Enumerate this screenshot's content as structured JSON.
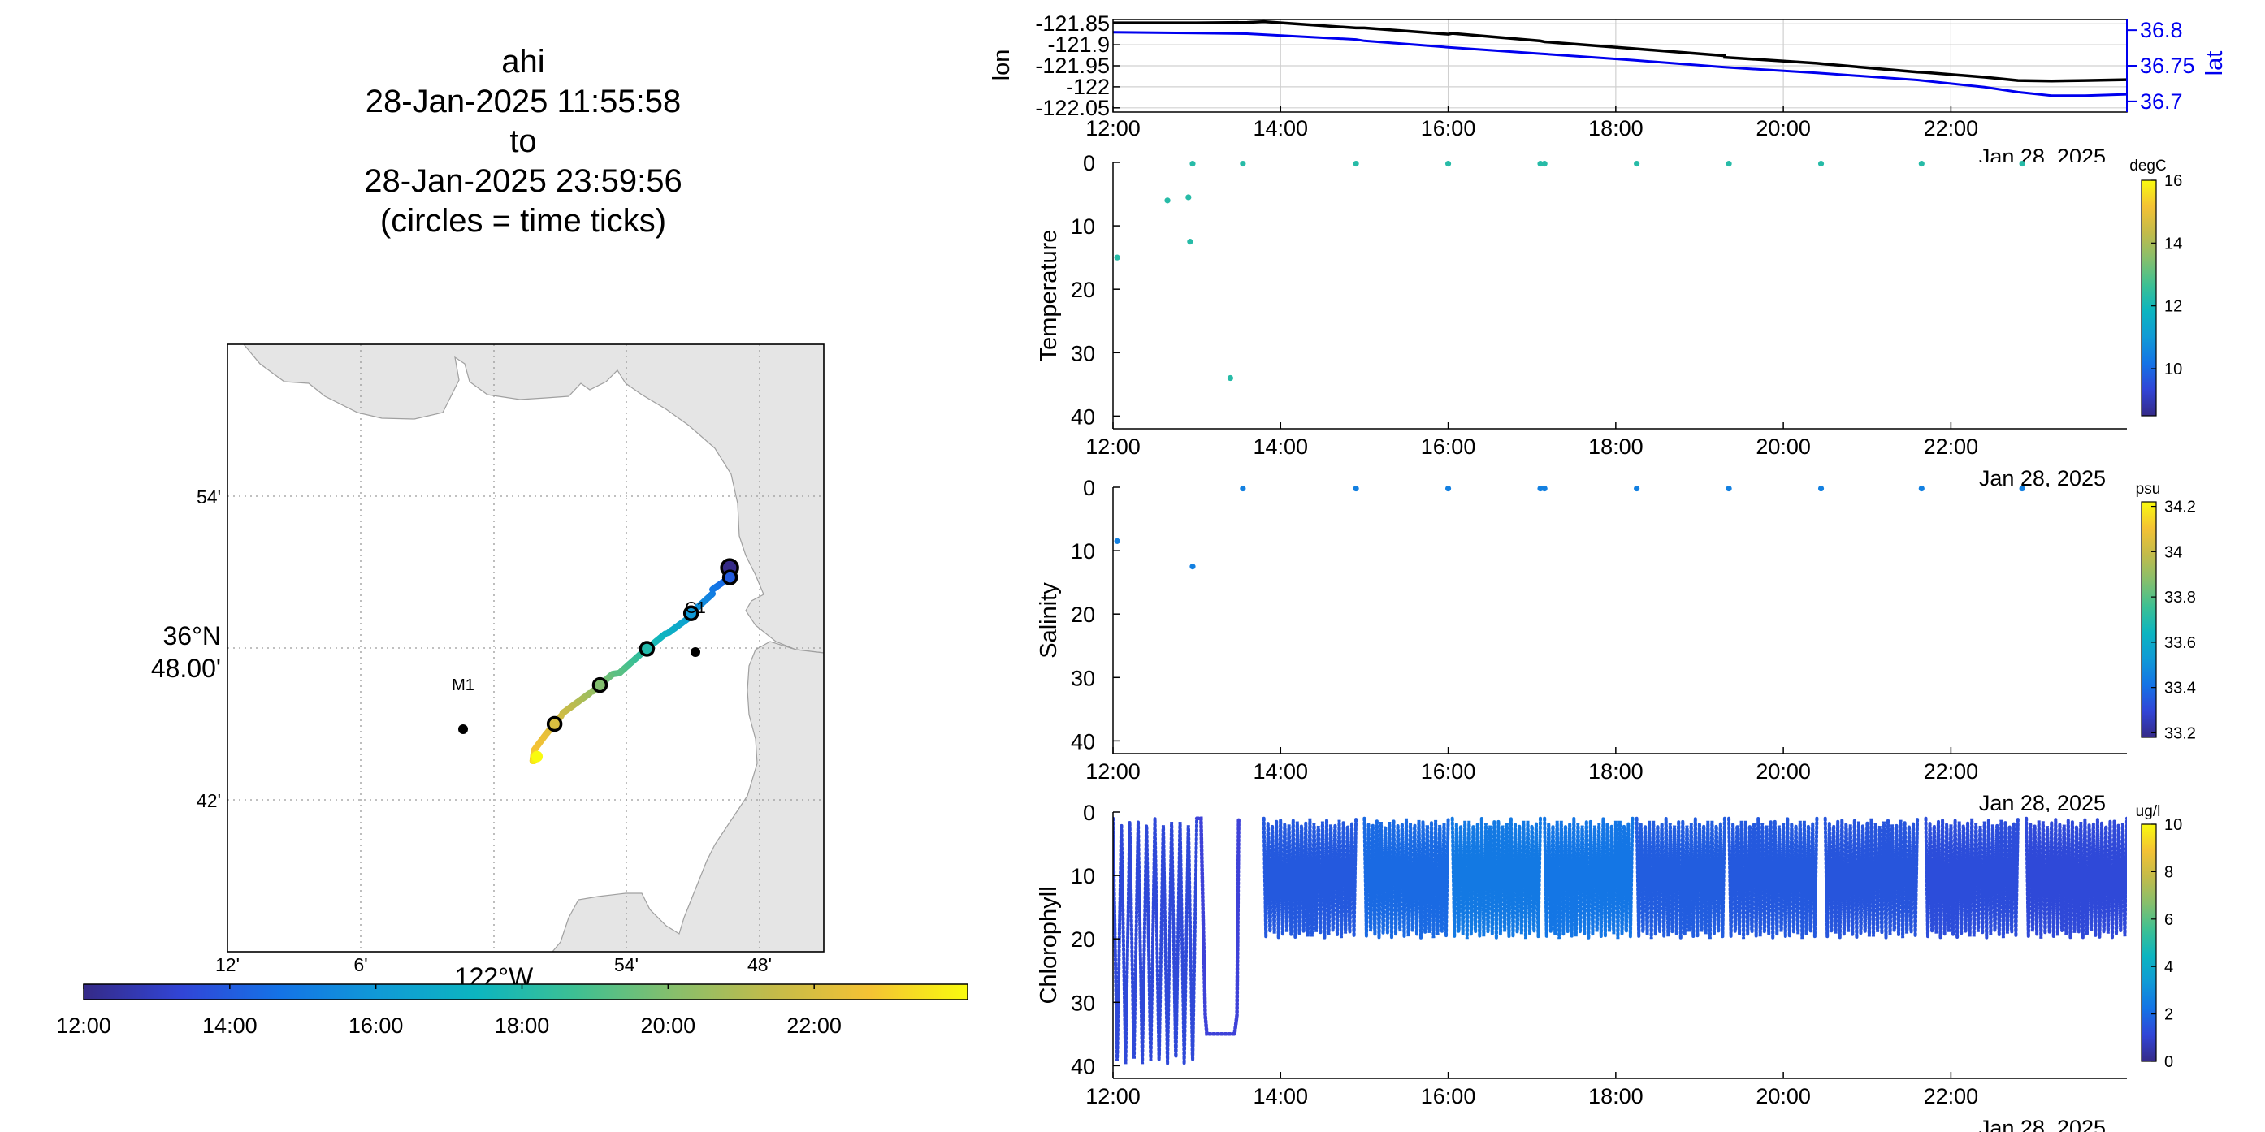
{
  "title": {
    "lines": [
      "ahi",
      "28-Jan-2025 11:55:58",
      "to",
      "28-Jan-2025 23:59:56",
      "(circles = time ticks)"
    ]
  },
  "colors": {
    "land": "#e5e5e5",
    "lon_line": "#000000",
    "lat_line": "#0000ee",
    "lat_axis": "#0000ee",
    "temperature_dot": "#2fb3c8",
    "salinity_dot": "#3a7be0",
    "chlorophyll_dot": "#3e42d8",
    "parula_colormap": [
      "#352a87",
      "#3145d7",
      "#1473e6",
      "#109ad6",
      "#0cb5c0",
      "#3dc093",
      "#86bf6c",
      "#c3bb4a",
      "#f4c234",
      "#f9fb0e"
    ]
  },
  "map": {
    "lat_labels": [
      "54'",
      "36°N",
      "48.00'",
      "42'"
    ],
    "lon_labels": [
      "12'",
      "6'",
      "122°W",
      "54'",
      "48'"
    ],
    "stations": [
      {
        "name": "M1",
        "lon": -122.03,
        "lat": 36.747
      },
      {
        "name": "C1",
        "lon": -121.848,
        "lat": 36.797
      }
    ],
    "colorbar_ticks": [
      "12:00",
      "14:00",
      "16:00",
      "18:00",
      "20:00",
      "22:00"
    ]
  },
  "chart_data": [
    {
      "type": "line",
      "title": "",
      "xlabel": "",
      "ylabel": "lon",
      "ylabel_right": "lat",
      "x_ticks": [
        "12:00",
        "14:00",
        "16:00",
        "18:00",
        "20:00",
        "22:00"
      ],
      "xlim_hours": [
        12,
        24.1
      ],
      "y_ticks_left": [
        "-121.85",
        "-121.9",
        "-121.95",
        "-122",
        "-122.05"
      ],
      "ylim_left": [
        -122.06,
        -121.84
      ],
      "y_ticks_right": [
        "36.8",
        "36.75",
        "36.7"
      ],
      "ylim_right": [
        36.685,
        36.815
      ],
      "series": [
        {
          "name": "lon",
          "axis": "left",
          "x": [
            12.0,
            13.0,
            13.6,
            13.8,
            14.9,
            15.0,
            16.0,
            16.05,
            17.1,
            17.15,
            18.2,
            19.3,
            19.3,
            20.4,
            20.5,
            21.6,
            21.7,
            22.4,
            22.8,
            23.2,
            23.6,
            24.1
          ],
          "values": [
            -121.848,
            -121.848,
            -121.847,
            -121.845,
            -121.86,
            -121.86,
            -121.875,
            -121.873,
            -121.891,
            -121.893,
            -121.909,
            -121.926,
            -121.93,
            -121.944,
            -121.946,
            -121.965,
            -121.966,
            -121.977,
            -121.985,
            -121.986,
            -121.985,
            -121.983
          ]
        },
        {
          "name": "lat",
          "axis": "right",
          "x": [
            12.0,
            13.0,
            13.6,
            14.9,
            15.0,
            16.0,
            17.1,
            18.2,
            19.3,
            20.4,
            21.6,
            22.4,
            22.8,
            23.2,
            23.6,
            24.1
          ],
          "values": [
            36.797,
            36.796,
            36.795,
            36.787,
            36.785,
            36.776,
            36.767,
            36.758,
            36.748,
            36.74,
            36.73,
            36.72,
            36.713,
            36.708,
            36.708,
            36.71
          ]
        }
      ],
      "date_label": "Jan 28, 2025"
    },
    {
      "type": "scatter",
      "title": "",
      "xlabel": "",
      "ylabel": "Temperature",
      "x_ticks": [
        "12:00",
        "14:00",
        "16:00",
        "18:00",
        "20:00",
        "22:00"
      ],
      "xlim_hours": [
        12,
        24.1
      ],
      "y_ticks": [
        "0",
        "10",
        "20",
        "30",
        "40"
      ],
      "ylim": [
        0,
        42
      ],
      "colorbar": {
        "unit": "degC",
        "ticks": [
          "16",
          "14",
          "12",
          "10"
        ],
        "range": [
          8.5,
          16
        ]
      },
      "points": {
        "x": [
          12.05,
          12.65,
          12.9,
          12.92,
          12.95,
          13.4,
          13.55,
          14.9,
          16.0,
          17.1,
          17.15,
          18.25,
          19.35,
          20.45,
          21.65,
          22.85
        ],
        "depth": [
          15,
          6,
          5.5,
          12.5,
          0.2,
          34,
          0.2,
          0.2,
          0.2,
          0.2,
          0.2,
          0.2,
          0.2,
          0.2,
          0.2,
          0.2
        ],
        "value": [
          12.3,
          12.3,
          12.3,
          12.3,
          12.3,
          12.3,
          12.3,
          12.3,
          12.3,
          12.3,
          12.3,
          12.3,
          12.3,
          12.3,
          12.3,
          12.3
        ]
      },
      "date_label": "Jan 28, 2025"
    },
    {
      "type": "scatter",
      "title": "",
      "xlabel": "",
      "ylabel": "Salinity",
      "x_ticks": [
        "12:00",
        "14:00",
        "16:00",
        "18:00",
        "20:00",
        "22:00"
      ],
      "xlim_hours": [
        12,
        24.1
      ],
      "y_ticks": [
        "0",
        "10",
        "20",
        "30",
        "40"
      ],
      "ylim": [
        0,
        42
      ],
      "colorbar": {
        "unit": "psu",
        "ticks": [
          "34.2",
          "34",
          "33.8",
          "33.6",
          "33.4",
          "33.2"
        ],
        "range": [
          33.18,
          34.22
        ]
      },
      "points": {
        "x": [
          12.05,
          12.95,
          13.55,
          14.9,
          16.0,
          17.1,
          17.15,
          18.25,
          19.35,
          20.45,
          21.65,
          22.85
        ],
        "depth": [
          8.5,
          12.5,
          0.2,
          0.2,
          0.2,
          0.2,
          0.2,
          0.2,
          0.2,
          0.2,
          0.2,
          0.2
        ],
        "value": [
          33.45,
          33.45,
          33.45,
          33.45,
          33.45,
          33.45,
          33.45,
          33.45,
          33.45,
          33.45,
          33.45,
          33.45
        ]
      },
      "date_label": "Jan 28, 2025"
    },
    {
      "type": "scatter",
      "title": "",
      "xlabel": "",
      "ylabel": "Chlorophyll",
      "x_ticks": [
        "12:00",
        "14:00",
        "16:00",
        "18:00",
        "20:00",
        "22:00"
      ],
      "xlim_hours": [
        12,
        24.1
      ],
      "y_ticks": [
        "0",
        "10",
        "20",
        "30",
        "40"
      ],
      "ylim": [
        0,
        42
      ],
      "colorbar": {
        "unit": "ug/l",
        "ticks": [
          "10",
          "8",
          "6",
          "4",
          "2",
          "0"
        ],
        "range": [
          0,
          10
        ]
      },
      "yo_segments": [
        {
          "start": 12.0,
          "end": 13.0,
          "top": 1,
          "bottom": 40,
          "period": 0.1,
          "level": 1.2
        },
        {
          "start": 13.8,
          "end": 14.9,
          "top": 1,
          "bottom": 20,
          "period": 0.05,
          "level": 1.6
        },
        {
          "start": 15.0,
          "end": 16.0,
          "top": 1,
          "bottom": 20,
          "period": 0.05,
          "level": 2.0
        },
        {
          "start": 16.05,
          "end": 17.1,
          "top": 1,
          "bottom": 20,
          "period": 0.05,
          "level": 2.4
        },
        {
          "start": 17.15,
          "end": 18.2,
          "top": 1,
          "bottom": 20,
          "period": 0.05,
          "level": 2.3
        },
        {
          "start": 18.25,
          "end": 19.3,
          "top": 1,
          "bottom": 20,
          "period": 0.05,
          "level": 1.7
        },
        {
          "start": 19.35,
          "end": 20.4,
          "top": 1,
          "bottom": 20,
          "period": 0.05,
          "level": 1.6
        },
        {
          "start": 20.5,
          "end": 21.6,
          "top": 1,
          "bottom": 20,
          "period": 0.05,
          "level": 1.5
        },
        {
          "start": 21.7,
          "end": 22.8,
          "top": 1,
          "bottom": 20,
          "period": 0.05,
          "level": 1.3
        },
        {
          "start": 22.9,
          "end": 24.1,
          "top": 1,
          "bottom": 20,
          "period": 0.05,
          "level": 1.2
        }
      ],
      "descent_path": {
        "x": [
          13.0,
          13.05,
          13.1,
          13.12,
          13.45,
          13.48,
          13.5
        ],
        "depth": [
          1,
          1,
          32,
          35,
          35,
          32,
          1
        ]
      },
      "date_label": "Jan 28, 2025"
    }
  ]
}
